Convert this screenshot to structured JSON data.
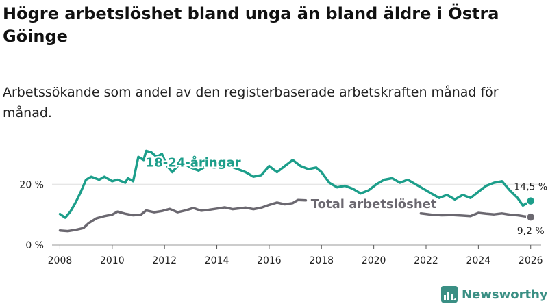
{
  "title": "Högre arbetslöshet bland unga än bland äldre i Östra Göinge",
  "subtitle": "Arbetssökande som andel av den registerbaserade arbetskraften månad för månad.",
  "brand": {
    "name": "Newsworthy",
    "color": "#3a8f84"
  },
  "chart_data": {
    "type": "line",
    "xlim": [
      2007.7,
      2026.4
    ],
    "ylim": [
      0,
      32
    ],
    "x_ticks": [
      {
        "value": 2008,
        "label": "2008"
      },
      {
        "value": 2010,
        "label": "2010"
      },
      {
        "value": 2012,
        "label": "2012"
      },
      {
        "value": 2014,
        "label": "2014"
      },
      {
        "value": 2016,
        "label": "2016"
      },
      {
        "value": 2018,
        "label": "2018"
      },
      {
        "value": 2020,
        "label": "2020"
      },
      {
        "value": 2022,
        "label": "2022"
      },
      {
        "value": 2024,
        "label": "2024"
      },
      {
        "value": 2026,
        "label": "2026"
      }
    ],
    "y_ticks": [
      {
        "value": 0,
        "label": "0 %"
      },
      {
        "value": 20,
        "label": "20 %"
      }
    ],
    "series": [
      {
        "name": "Total arbetslöshet",
        "label": "Total arbetslöshet",
        "color": "#6b6870",
        "end_label": "9,2 %",
        "points": [
          [
            2008.0,
            4.8
          ],
          [
            2008.3,
            4.6
          ],
          [
            2008.6,
            5.0
          ],
          [
            2008.9,
            5.6
          ],
          [
            2009.1,
            7.2
          ],
          [
            2009.4,
            8.8
          ],
          [
            2009.7,
            9.5
          ],
          [
            2010.0,
            10.0
          ],
          [
            2010.2,
            11.0
          ],
          [
            2010.5,
            10.3
          ],
          [
            2010.8,
            9.8
          ],
          [
            2011.1,
            10.0
          ],
          [
            2011.3,
            11.4
          ],
          [
            2011.6,
            10.8
          ],
          [
            2011.9,
            11.2
          ],
          [
            2012.2,
            11.9
          ],
          [
            2012.5,
            10.8
          ],
          [
            2012.8,
            11.4
          ],
          [
            2013.1,
            12.2
          ],
          [
            2013.4,
            11.3
          ],
          [
            2013.7,
            11.6
          ],
          [
            2014.0,
            12.0
          ],
          [
            2014.3,
            12.4
          ],
          [
            2014.6,
            11.8
          ],
          [
            2014.9,
            12.1
          ],
          [
            2015.1,
            12.3
          ],
          [
            2015.4,
            11.8
          ],
          [
            2015.7,
            12.3
          ],
          [
            2016.0,
            13.2
          ],
          [
            2016.3,
            14.0
          ],
          [
            2016.6,
            13.4
          ],
          [
            2016.9,
            13.8
          ],
          [
            2017.1,
            14.8
          ],
          [
            2017.4,
            14.7
          ]
        ],
        "points_continued": [
          [
            2021.8,
            10.4
          ],
          [
            2022.2,
            10.0
          ],
          [
            2022.6,
            9.8
          ],
          [
            2023.0,
            9.9
          ],
          [
            2023.4,
            9.7
          ],
          [
            2023.7,
            9.5
          ],
          [
            2024.0,
            10.6
          ],
          [
            2024.3,
            10.3
          ],
          [
            2024.6,
            10.1
          ],
          [
            2024.9,
            10.4
          ],
          [
            2025.2,
            10.0
          ],
          [
            2025.5,
            9.8
          ],
          [
            2025.8,
            9.4
          ],
          [
            2026.0,
            9.2
          ]
        ]
      },
      {
        "name": "18-24-åringar",
        "label": "18-24-åringar",
        "color": "#1c9e8a",
        "end_label": "14,5 %",
        "points": [
          [
            2008.0,
            10.2
          ],
          [
            2008.2,
            9.0
          ],
          [
            2008.4,
            11.0
          ],
          [
            2008.6,
            14.0
          ],
          [
            2008.8,
            17.5
          ],
          [
            2009.0,
            21.5
          ],
          [
            2009.2,
            22.5
          ],
          [
            2009.5,
            21.5
          ],
          [
            2009.7,
            22.5
          ],
          [
            2010.0,
            21.0
          ],
          [
            2010.2,
            21.5
          ],
          [
            2010.5,
            20.5
          ],
          [
            2010.6,
            22.0
          ],
          [
            2010.8,
            21.0
          ],
          [
            2011.0,
            29.0
          ],
          [
            2011.2,
            28.0
          ],
          [
            2011.3,
            31.0
          ],
          [
            2011.5,
            30.5
          ],
          [
            2011.7,
            29.0
          ],
          [
            2011.9,
            30.0
          ],
          [
            2012.1,
            26.0
          ],
          [
            2012.3,
            24.0
          ],
          [
            2012.5,
            26.0
          ],
          [
            2012.8,
            26.5
          ],
          [
            2013.0,
            25.5
          ],
          [
            2013.3,
            24.5
          ],
          [
            2013.6,
            26.0
          ],
          [
            2013.9,
            25.5
          ],
          [
            2014.2,
            26.0
          ],
          [
            2014.5,
            26.0
          ],
          [
            2014.8,
            25.0
          ],
          [
            2015.1,
            24.0
          ],
          [
            2015.4,
            22.5
          ],
          [
            2015.7,
            23.0
          ],
          [
            2016.0,
            26.0
          ],
          [
            2016.3,
            24.0
          ],
          [
            2016.6,
            26.0
          ],
          [
            2016.9,
            28.0
          ],
          [
            2017.2,
            26.0
          ],
          [
            2017.5,
            25.0
          ],
          [
            2017.8,
            25.5
          ],
          [
            2018.0,
            24.0
          ],
          [
            2018.3,
            20.5
          ],
          [
            2018.6,
            19.0
          ],
          [
            2018.9,
            19.5
          ],
          [
            2019.2,
            18.5
          ],
          [
            2019.5,
            17.0
          ],
          [
            2019.8,
            18.0
          ],
          [
            2020.1,
            20.0
          ],
          [
            2020.4,
            21.5
          ],
          [
            2020.7,
            22.0
          ],
          [
            2021.0,
            20.5
          ],
          [
            2021.3,
            21.5
          ],
          [
            2021.6,
            20.0
          ],
          [
            2021.9,
            18.5
          ],
          [
            2022.2,
            17.0
          ],
          [
            2022.5,
            15.5
          ],
          [
            2022.8,
            16.5
          ],
          [
            2023.1,
            15.0
          ],
          [
            2023.4,
            16.5
          ],
          [
            2023.7,
            15.5
          ],
          [
            2024.0,
            17.5
          ],
          [
            2024.3,
            19.5
          ],
          [
            2024.6,
            20.5
          ],
          [
            2024.9,
            21.0
          ],
          [
            2025.2,
            18.0
          ],
          [
            2025.5,
            15.5
          ],
          [
            2025.7,
            13.0
          ],
          [
            2026.0,
            14.5
          ]
        ]
      }
    ],
    "annotations": [
      {
        "text": "18-24-åringar",
        "series": "18-24-åringar",
        "x": 2013.1,
        "y": 27.2,
        "color": "#1c9e8a"
      },
      {
        "text": "Total arbetslöshet",
        "series": "Total arbetslöshet",
        "x": 2020.0,
        "y": 13.5,
        "color": "#6b6870"
      }
    ]
  }
}
